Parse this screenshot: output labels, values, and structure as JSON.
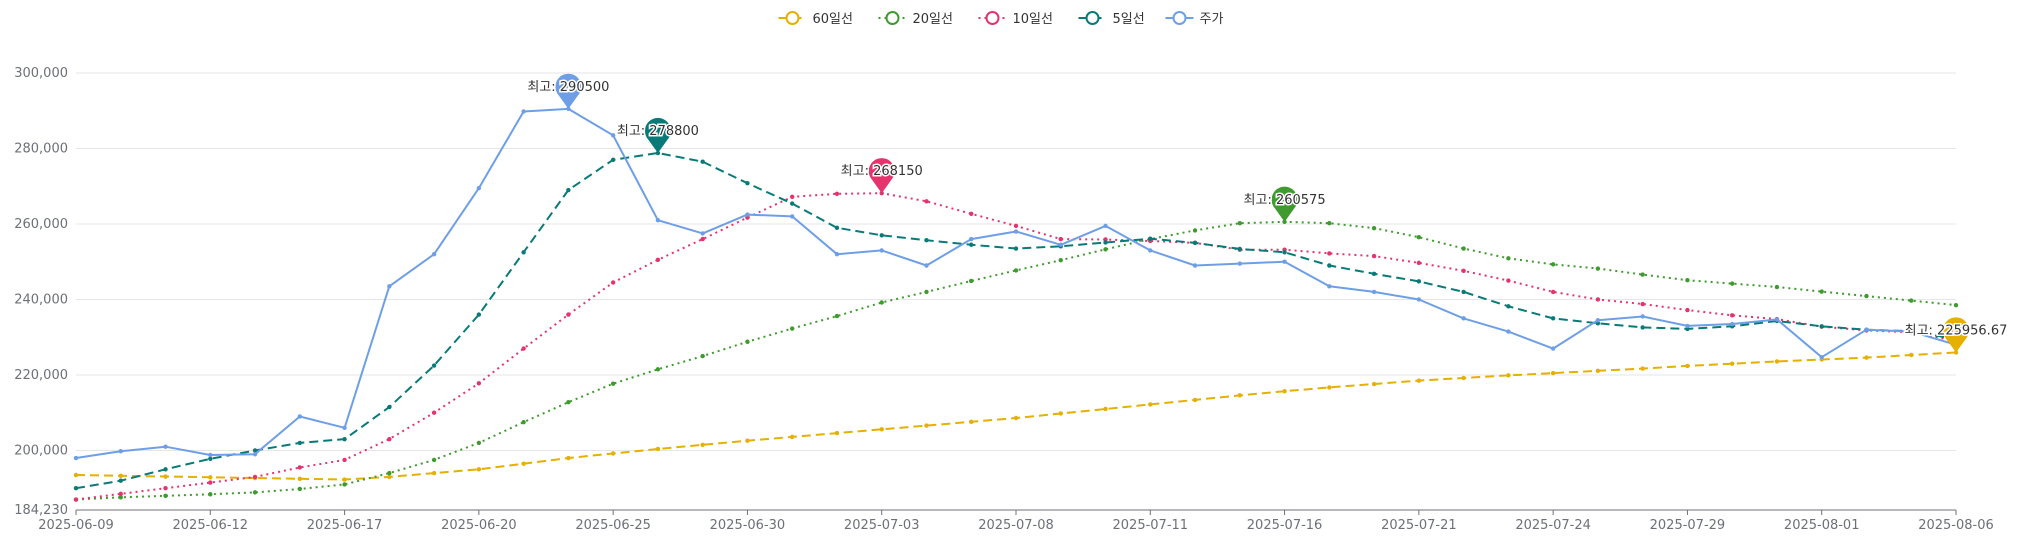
{
  "chart_data": {
    "type": "line",
    "legend_position": "top-center",
    "grid": true,
    "ylim": [
      184230,
      300000
    ],
    "y_ticks": [
      "184,230",
      "200,000",
      "220,000",
      "240,000",
      "260,000",
      "280,000",
      "300,000"
    ],
    "x_tick_labels": [
      "2025-06-09",
      "2025-06-12",
      "2025-06-17",
      "2025-06-20",
      "2025-06-25",
      "2025-06-30",
      "2025-07-03",
      "2025-07-08",
      "2025-07-11",
      "2025-07-16",
      "2025-07-21",
      "2025-07-24",
      "2025-07-29",
      "2025-08-01",
      "2025-08-06"
    ],
    "dates": [
      "2025-06-09",
      "2025-06-10",
      "2025-06-11",
      "2025-06-12",
      "2025-06-13",
      "2025-06-16",
      "2025-06-17",
      "2025-06-18",
      "2025-06-19",
      "2025-06-20",
      "2025-06-23",
      "2025-06-24",
      "2025-06-25",
      "2025-06-26",
      "2025-06-27",
      "2025-06-30",
      "2025-07-01",
      "2025-07-02",
      "2025-07-03",
      "2025-07-04",
      "2025-07-07",
      "2025-07-08",
      "2025-07-09",
      "2025-07-10",
      "2025-07-11",
      "2025-07-14",
      "2025-07-15",
      "2025-07-16",
      "2025-07-17",
      "2025-07-18",
      "2025-07-21",
      "2025-07-22",
      "2025-07-23",
      "2025-07-24",
      "2025-07-25",
      "2025-07-28",
      "2025-07-29",
      "2025-07-30",
      "2025-07-31",
      "2025-08-01",
      "2025-08-04",
      "2025-08-05",
      "2025-08-06"
    ],
    "series": [
      {
        "name": "60일선",
        "color": "#e5b000",
        "dash": "dashed",
        "values": [
          193500,
          193300,
          193100,
          192900,
          192700,
          192500,
          192300,
          193000,
          194000,
          195000,
          196500,
          198000,
          199200,
          200400,
          201500,
          202600,
          203600,
          204600,
          205600,
          206600,
          207600,
          208600,
          209800,
          211000,
          212200,
          213400,
          214600,
          215700,
          216700,
          217600,
          218500,
          219200,
          219900,
          220500,
          221100,
          221700,
          222400,
          223000,
          223600,
          224100,
          224600,
          225300,
          225957
        ],
        "max_label": "최고: 225956.67"
      },
      {
        "name": "20일선",
        "color": "#3f9b2f",
        "dash": "dotted",
        "values": [
          187000,
          187600,
          188000,
          188400,
          188900,
          189800,
          191000,
          194000,
          197500,
          202000,
          207500,
          212800,
          217700,
          221500,
          225000,
          228800,
          232300,
          235600,
          239200,
          242000,
          244900,
          247700,
          250400,
          253300,
          256000,
          258300,
          260200,
          260575,
          260200,
          258900,
          256500,
          253500,
          250900,
          249300,
          248200,
          246600,
          245100,
          244200,
          243300,
          242100,
          240900,
          239700,
          238500
        ],
        "max_label": "최고: 260575"
      },
      {
        "name": "10일선",
        "color": "#e5336d",
        "dash": "dotted",
        "values": [
          187000,
          188500,
          190000,
          191500,
          193000,
          195500,
          197500,
          203000,
          210000,
          217800,
          227000,
          236000,
          244500,
          250500,
          256000,
          261700,
          267200,
          268000,
          268150,
          266000,
          262700,
          259500,
          256000,
          255900,
          255500,
          255000,
          253200,
          253200,
          252200,
          251500,
          249700,
          247600,
          245000,
          242000,
          240000,
          238800,
          237200,
          235800,
          234800,
          232800,
          231800,
          231300,
          229000
        ],
        "max_label": "최고: 268150"
      },
      {
        "name": "5일선",
        "color": "#087a78",
        "dash": "dashed",
        "values": [
          190000,
          192000,
          195000,
          197800,
          200000,
          202000,
          203000,
          211500,
          222500,
          236000,
          252500,
          269000,
          277000,
          278800,
          276500,
          270800,
          265400,
          259000,
          257000,
          255700,
          254500,
          253500,
          254100,
          255100,
          256100,
          255000,
          253400,
          252500,
          249000,
          246800,
          244800,
          242000,
          238200,
          235000,
          233700,
          232600,
          232200,
          232900,
          234300,
          232900,
          232000,
          231600,
          229500
        ],
        "max_label": "최고: 278800"
      },
      {
        "name": "주가",
        "color": "#6e9fe6",
        "dash": "solid",
        "values": [
          198000,
          199800,
          201000,
          198800,
          199000,
          209000,
          206000,
          243500,
          252000,
          269500,
          289800,
          290500,
          283500,
          261000,
          257500,
          262500,
          262000,
          252000,
          253000,
          249000,
          256000,
          258000,
          254500,
          259500,
          253000,
          249000,
          249500,
          250000,
          243500,
          242000,
          240000,
          235000,
          231500,
          227000,
          234500,
          235500,
          233000,
          233500,
          234700,
          224700,
          232000,
          231500,
          228000
        ],
        "max_label": "최고: 290500"
      }
    ]
  }
}
